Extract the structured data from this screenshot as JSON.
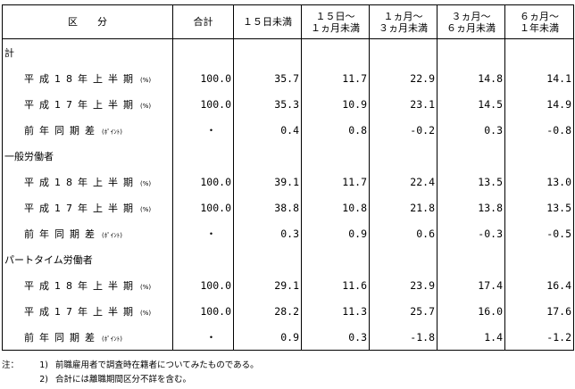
{
  "table": {
    "headers": [
      "区分",
      "合計",
      "１５日未満",
      "１５日～\n１ヵ月未満",
      "１ヵ月～\n３ヵ月未満",
      "３ヵ月～\n６ヵ月未満",
      "６ヵ月～\n１年未満"
    ],
    "groups": [
      {
        "label": "計",
        "rows": [
          {
            "label": "平成18年上半期",
            "unit": "(%)",
            "values": [
              "100.0",
              "35.7",
              "11.7",
              "22.9",
              "14.8",
              "14.1"
            ]
          },
          {
            "label": "平成17年上半期",
            "unit": "(%)",
            "values": [
              "100.0",
              "35.3",
              "10.9",
              "23.1",
              "14.5",
              "14.9"
            ]
          },
          {
            "label": "前年同期差",
            "unit": "(ﾎﾟｲﾝﾄ)",
            "values": [
              "・",
              "0.4",
              "0.8",
              "-0.2",
              "0.3",
              "-0.8"
            ]
          }
        ]
      },
      {
        "label": "一般労働者",
        "rows": [
          {
            "label": "平成18年上半期",
            "unit": "(%)",
            "values": [
              "100.0",
              "39.1",
              "11.7",
              "22.4",
              "13.5",
              "13.0"
            ]
          },
          {
            "label": "平成17年上半期",
            "unit": "(%)",
            "values": [
              "100.0",
              "38.8",
              "10.8",
              "21.8",
              "13.8",
              "13.5"
            ]
          },
          {
            "label": "前年同期差",
            "unit": "(ﾎﾟｲﾝﾄ)",
            "values": [
              "・",
              "0.3",
              "0.9",
              "0.6",
              "-0.3",
              "-0.5"
            ]
          }
        ]
      },
      {
        "label": "パートタイム労働者",
        "rows": [
          {
            "label": "平成18年上半期",
            "unit": "(%)",
            "values": [
              "100.0",
              "29.1",
              "11.6",
              "23.9",
              "17.4",
              "16.4"
            ]
          },
          {
            "label": "平成17年上半期",
            "unit": "(%)",
            "values": [
              "100.0",
              "28.2",
              "11.3",
              "25.7",
              "16.0",
              "17.6"
            ]
          },
          {
            "label": "前年同期差",
            "unit": "(ﾎﾟｲﾝﾄ)",
            "values": [
              "・",
              "0.9",
              "0.3",
              "-1.8",
              "1.4",
              "-1.2"
            ]
          }
        ]
      }
    ]
  },
  "notes": {
    "lead": "注：",
    "items": [
      {
        "num": "1)",
        "text": "前職雇用者で調査時在籍者についてみたものである。"
      },
      {
        "num": "2)",
        "text": "合計には離職期間区分不詳を含む。"
      }
    ]
  }
}
